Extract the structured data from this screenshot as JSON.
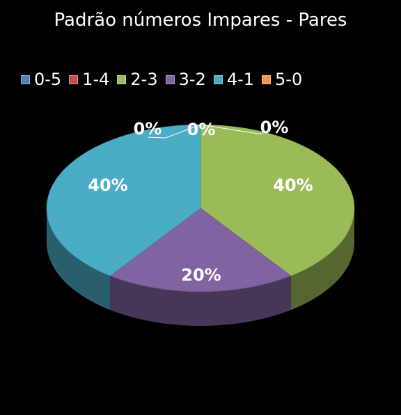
{
  "chart_data": {
    "type": "pie",
    "title": "Padrão números Impares - Pares",
    "legend_position": "top",
    "categories": [
      "0-5",
      "1-4",
      "2-3",
      "3-2",
      "4-1",
      "5-0"
    ],
    "values": [
      0,
      0,
      40,
      20,
      40,
      0
    ],
    "labels": [
      "0%",
      "0%",
      "40%",
      "20%",
      "40%",
      "0%"
    ],
    "colors": [
      "#4F81BD",
      "#C0504D",
      "#9BBB59",
      "#8064A2",
      "#4BACC6",
      "#F79646"
    ],
    "three_d": true
  }
}
